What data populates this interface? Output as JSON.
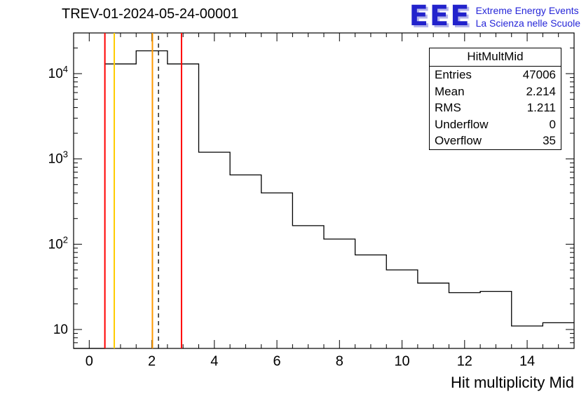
{
  "header": {
    "title": "TREV-01-2024-05-24-00001"
  },
  "logo": {
    "acronym": "EEE",
    "line1": "Extreme Energy Events",
    "line2": "La Scienza nelle Scuole"
  },
  "stats": {
    "title": "HitMultMid",
    "rows": [
      {
        "label": "Entries",
        "value": "47006"
      },
      {
        "label": "Mean",
        "value": "2.214"
      },
      {
        "label": "RMS",
        "value": "1.211"
      },
      {
        "label": "Underflow",
        "value": "0"
      },
      {
        "label": "Overflow",
        "value": "35"
      }
    ]
  },
  "chart_data": {
    "type": "bar",
    "title": "TREV-01-2024-05-24-00001",
    "xlabel": "Hit multiplicity Mid",
    "ylabel": "",
    "y_scale": "log",
    "grid": false,
    "legend_position": "none",
    "x_range": [
      -0.5,
      15.5
    ],
    "y_range": [
      6,
      30000
    ],
    "bin_edges": [
      0.5,
      1.5,
      2.5,
      3.5,
      4.5,
      5.5,
      6.5,
      7.5,
      8.5,
      9.5,
      10.5,
      11.5,
      12.5,
      13.5,
      14.5,
      15.5
    ],
    "values": [
      13000,
      18500,
      13000,
      1200,
      650,
      400,
      165,
      115,
      75,
      50,
      35,
      27,
      28,
      11,
      12
    ],
    "line_color": "#000000",
    "x_major_ticks": [
      0,
      2,
      4,
      6,
      8,
      10,
      12,
      14
    ],
    "x_minor_step": 0.5,
    "y_major_ticks": [
      {
        "value": 10,
        "base": "10",
        "exp": ""
      },
      {
        "value": 100,
        "base": "10",
        "exp": "2"
      },
      {
        "value": 1000,
        "base": "10",
        "exp": "3"
      },
      {
        "value": 10000,
        "base": "10",
        "exp": "4"
      }
    ],
    "marker_lines": [
      {
        "x": 0.5,
        "color": "#ff0000",
        "style": "solid"
      },
      {
        "x": 0.8,
        "color": "#ffcc00",
        "style": "solid"
      },
      {
        "x": 2.02,
        "color": "#ff9900",
        "style": "solid"
      },
      {
        "x": 2.214,
        "color": "#000000",
        "style": "dashed"
      },
      {
        "x": 2.95,
        "color": "#ff0000",
        "style": "solid"
      }
    ]
  }
}
